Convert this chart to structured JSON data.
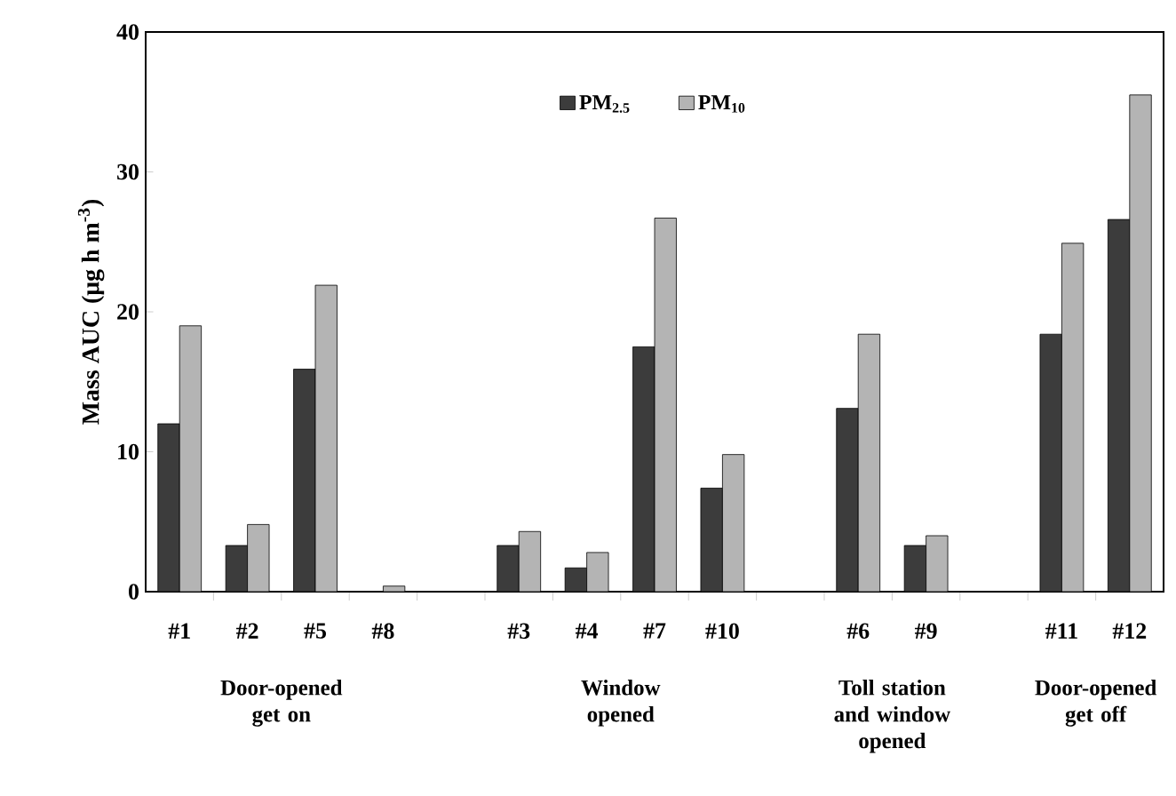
{
  "chart_data": {
    "type": "bar",
    "ylabel": "Mass AUC (μg h m$^{-3}$)",
    "categories": [
      "#1",
      "#2",
      "#5",
      "#8",
      null,
      "#3",
      "#4",
      "#7",
      "#10",
      null,
      "#6",
      "#9",
      null,
      "#11",
      "#12"
    ],
    "series": [
      {
        "name": "PM$_{2.5}$",
        "color": "#3c3c3c",
        "values": [
          12.0,
          3.3,
          15.9,
          0,
          null,
          3.3,
          1.7,
          17.5,
          7.4,
          null,
          13.1,
          3.3,
          null,
          18.4,
          26.6
        ]
      },
      {
        "name": "PM$_{10}$",
        "color": "#b4b4b4",
        "values": [
          19.0,
          4.8,
          21.9,
          0.4,
          null,
          4.3,
          2.8,
          26.7,
          9.8,
          null,
          18.4,
          4.0,
          null,
          24.9,
          35.5
        ]
      }
    ],
    "ylim": [
      0,
      40
    ],
    "yticks": [
      0,
      10,
      20,
      30,
      40
    ],
    "legend": "top",
    "grid": false,
    "annotations": [
      "Door-opened get on",
      "Window opened",
      "Toll station and window opened",
      "Door-opened get off"
    ]
  }
}
